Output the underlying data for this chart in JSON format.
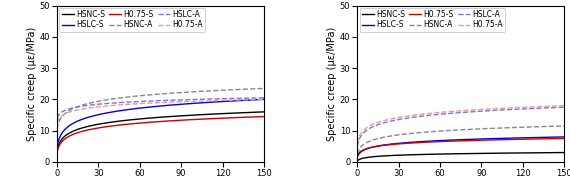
{
  "left_chart": {
    "ylabel": "Specific creep (με/MPa)",
    "xlim": [
      0,
      150
    ],
    "ylim": [
      0,
      50
    ],
    "xticks": [
      0,
      30,
      60,
      90,
      120,
      150
    ],
    "yticks": [
      0,
      10,
      20,
      30,
      40,
      50
    ],
    "series": [
      {
        "label": "HSNC-S",
        "color": "#000000",
        "linestyle": "solid",
        "start_val": 3.5,
        "end_val": 16.0
      },
      {
        "label": "HSLC-S",
        "color": "#0000dd",
        "linestyle": "solid",
        "start_val": 4.5,
        "end_val": 20.0
      },
      {
        "label": "H0.75-S",
        "color": "#cc0000",
        "linestyle": "solid",
        "start_val": 3.0,
        "end_val": 14.5
      },
      {
        "label": "HSNC-A",
        "color": "#888888",
        "linestyle": "dashed",
        "start_val": 10.5,
        "end_val": 23.5
      },
      {
        "label": "HSLC-A",
        "color": "#7777dd",
        "linestyle": "dashed",
        "start_val": 14.0,
        "end_val": 20.5
      },
      {
        "label": "H0.75-A",
        "color": "#ee9999",
        "linestyle": "dashed",
        "start_val": 12.5,
        "end_val": 20.0
      }
    ]
  },
  "right_chart": {
    "ylabel": "Specific creep (με/MPa)",
    "xlim": [
      0,
      150
    ],
    "ylim": [
      0,
      50
    ],
    "xticks": [
      0,
      30,
      60,
      90,
      120,
      150
    ],
    "yticks": [
      0,
      10,
      20,
      30,
      40,
      50
    ],
    "series": [
      {
        "label": "HSNC-S",
        "color": "#000000",
        "linestyle": "solid",
        "start_val": 0.3,
        "end_val": 3.0
      },
      {
        "label": "HSLC-S",
        "color": "#0000dd",
        "linestyle": "solid",
        "start_val": 1.5,
        "end_val": 8.0
      },
      {
        "label": "H0.75-S",
        "color": "#cc0000",
        "linestyle": "solid",
        "start_val": 2.0,
        "end_val": 7.5
      },
      {
        "label": "HSNC-A",
        "color": "#888888",
        "linestyle": "dashed",
        "start_val": 2.5,
        "end_val": 11.5
      },
      {
        "label": "HSLC-A",
        "color": "#7777dd",
        "linestyle": "dashed",
        "start_val": 5.0,
        "end_val": 17.5
      },
      {
        "label": "H0.75-A",
        "color": "#ee9999",
        "linestyle": "dashed",
        "start_val": 6.0,
        "end_val": 18.0
      }
    ]
  },
  "linewidth": 1.0,
  "legend_fontsize": 5.5,
  "tick_fontsize": 6.0,
  "label_fontsize": 7.0,
  "background_color": "#ffffff"
}
